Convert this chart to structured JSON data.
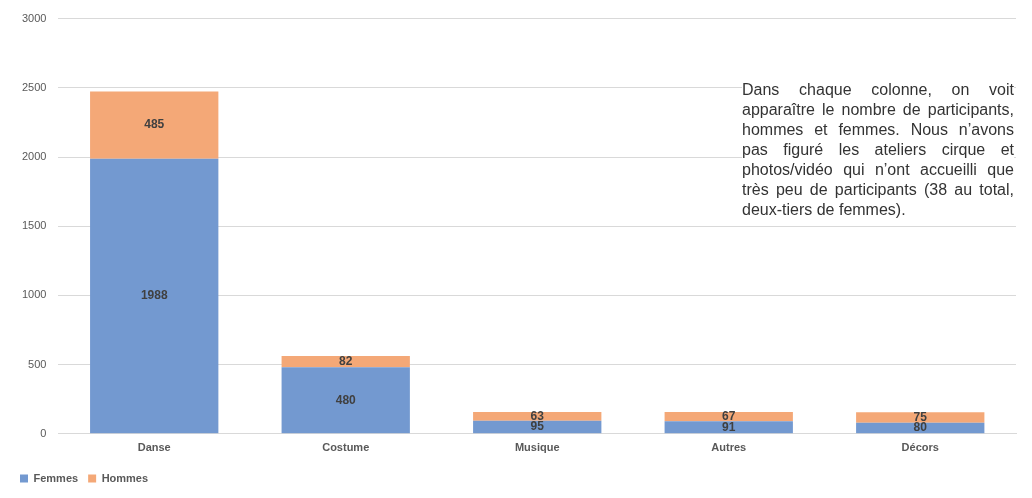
{
  "chart_data": {
    "type": "bar",
    "stacked": true,
    "categories": [
      "Danse",
      "Costume",
      "Musique",
      "Autres",
      "Décors"
    ],
    "series": [
      {
        "name": "Femmes",
        "color": "#7399d0",
        "values": [
          1988,
          480,
          95,
          91,
          80
        ]
      },
      {
        "name": "Hommes",
        "color": "#f4a877",
        "values": [
          485,
          82,
          63,
          67,
          75
        ]
      }
    ],
    "ylim": [
      0,
      3000
    ],
    "yticks": [
      0,
      500,
      1000,
      1500,
      2000,
      2500,
      3000
    ],
    "grid": "y",
    "legend": "bottom left",
    "data_labels": true,
    "annotations": [
      "Dans chaque colonne, on voit apparaître le nombre de participants, hommes et femmes. Nous n’avons pas figuré les ateliers cirque et photos/vidéo qui n’ont accueilli que très peu de participants (38 au total, deux-tiers de femmes)."
    ]
  }
}
